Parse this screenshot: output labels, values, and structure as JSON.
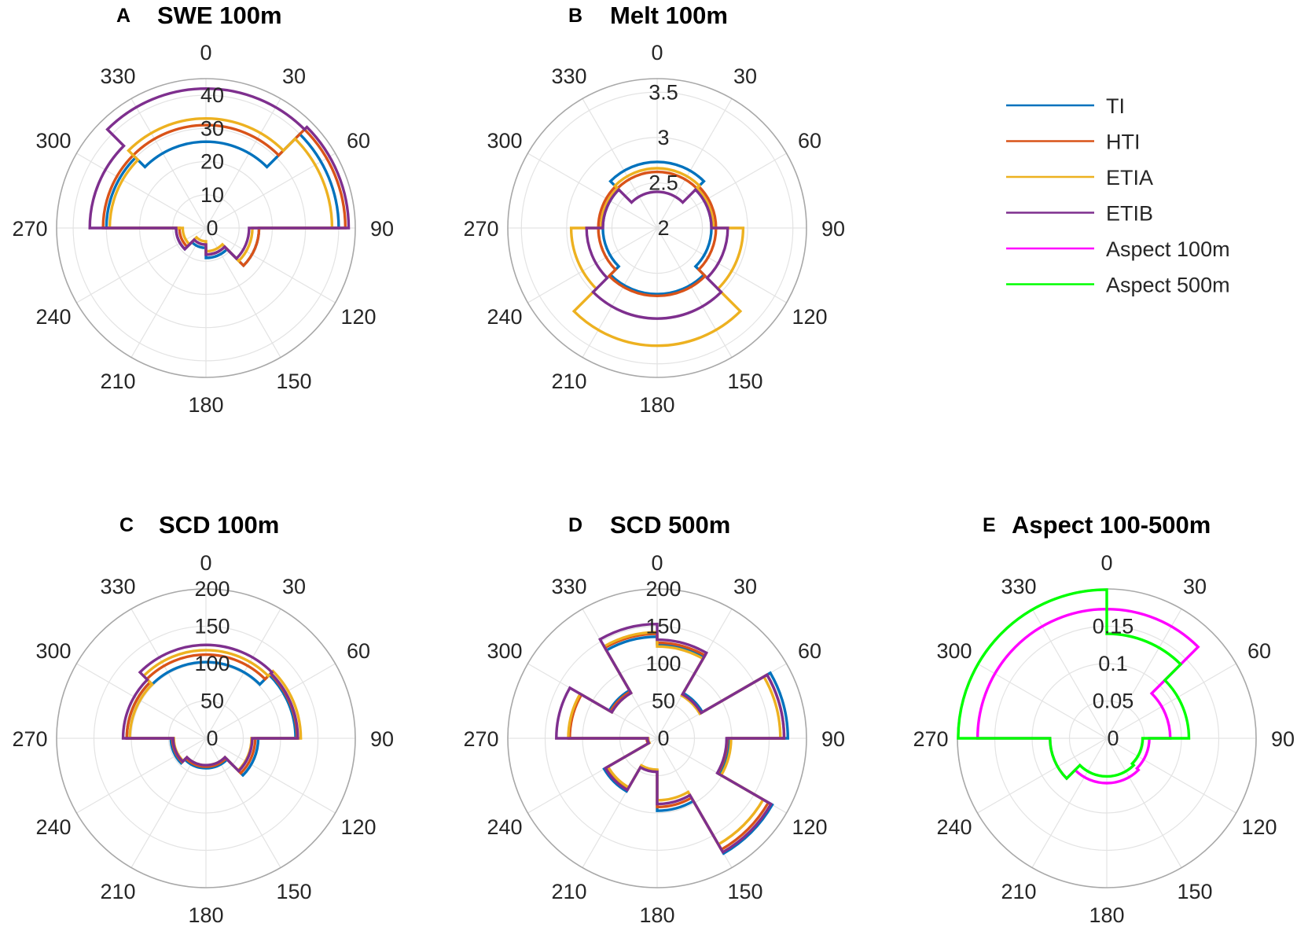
{
  "legend": {
    "placement": "right",
    "entries": [
      {
        "label": "TI",
        "color": "#0072BD"
      },
      {
        "label": "HTI",
        "color": "#D95319"
      },
      {
        "label": "ETIA",
        "color": "#EDB120"
      },
      {
        "label": "ETIB",
        "color": "#7E2F8E"
      },
      {
        "label": "Aspect 100m",
        "color": "#FF00FF"
      },
      {
        "label": "Aspect 500m",
        "color": "#00FF00"
      }
    ]
  },
  "chart_data": [
    {
      "type": "polar-histogram",
      "letter": "A",
      "title": "SWE 100m",
      "theta_ticks": [
        "0",
        "30",
        "60",
        "90",
        "120",
        "150",
        "180",
        "210",
        "240",
        "270",
        "300",
        "330"
      ],
      "r_ticks": [
        "0",
        "10",
        "20",
        "30",
        "40"
      ],
      "r_tick_values": [
        0,
        10,
        20,
        30,
        40
      ],
      "rlim": [
        0,
        45
      ],
      "bin_edges_deg": [
        0,
        45,
        90,
        135,
        180,
        225,
        270,
        315,
        360
      ],
      "series": [
        {
          "name": "TI",
          "color": "#0072BD",
          "values": [
            26,
            40,
            16,
            9,
            6,
            9,
            30,
            26
          ]
        },
        {
          "name": "HTI",
          "color": "#D95319",
          "values": [
            31,
            42,
            16,
            8,
            5,
            8,
            31,
            31
          ]
        },
        {
          "name": "ETIA",
          "color": "#EDB120",
          "values": [
            33,
            38,
            14,
            7,
            4,
            7,
            29,
            33
          ]
        },
        {
          "name": "ETIB",
          "color": "#7E2F8E",
          "values": [
            42,
            43,
            13,
            8,
            5,
            9,
            35,
            42
          ]
        }
      ]
    },
    {
      "type": "polar-histogram",
      "letter": "B",
      "title": "Melt 100m",
      "theta_ticks": [
        "0",
        "30",
        "60",
        "90",
        "120",
        "150",
        "180",
        "210",
        "240",
        "270",
        "300",
        "330"
      ],
      "r_ticks": [
        "2",
        "2.5",
        "3",
        "3.5"
      ],
      "r_tick_values": [
        2,
        2.5,
        3,
        3.5
      ],
      "rlim": [
        2,
        3.65
      ],
      "bin_edges_deg": [
        0,
        45,
        90,
        135,
        180,
        225,
        270,
        315,
        360
      ],
      "series": [
        {
          "name": "TI",
          "color": "#0072BD",
          "values": [
            2.73,
            2.6,
            2.6,
            2.73,
            2.73,
            2.6,
            2.6,
            2.73
          ]
        },
        {
          "name": "HTI",
          "color": "#D95319",
          "values": [
            2.62,
            2.65,
            2.65,
            2.75,
            2.75,
            2.65,
            2.65,
            2.62
          ]
        },
        {
          "name": "ETIA",
          "color": "#EDB120",
          "values": [
            2.66,
            2.62,
            2.95,
            3.3,
            3.3,
            2.95,
            2.62,
            2.66
          ]
        },
        {
          "name": "ETIB",
          "color": "#7E2F8E",
          "values": [
            2.4,
            2.6,
            2.78,
            3.0,
            3.0,
            2.78,
            2.6,
            2.4
          ]
        }
      ]
    },
    {
      "type": "polar-histogram",
      "letter": "C",
      "title": "SCD 100m",
      "theta_ticks": [
        "0",
        "30",
        "60",
        "90",
        "120",
        "150",
        "180",
        "210",
        "240",
        "270",
        "300",
        "330"
      ],
      "r_ticks": [
        "0",
        "50",
        "100",
        "150",
        "200"
      ],
      "r_tick_values": [
        0,
        50,
        100,
        150,
        200
      ],
      "rlim": [
        0,
        200
      ],
      "bin_edges_deg": [
        0,
        45,
        90,
        135,
        180,
        225,
        270,
        315,
        360
      ],
      "series": [
        {
          "name": "TI",
          "color": "#0072BD",
          "values": [
            102,
            120,
            70,
            40,
            40,
            47,
            106,
            102
          ]
        },
        {
          "name": "HTI",
          "color": "#D95319",
          "values": [
            112,
            122,
            66,
            38,
            38,
            45,
            106,
            112
          ]
        },
        {
          "name": "ETIA",
          "color": "#EDB120",
          "values": [
            118,
            127,
            61,
            36,
            36,
            43,
            102,
            118
          ]
        },
        {
          "name": "ETIB",
          "color": "#7E2F8E",
          "values": [
            125,
            123,
            62,
            36,
            36,
            44,
            111,
            125
          ]
        }
      ]
    },
    {
      "type": "polar-histogram",
      "letter": "D",
      "title": "SCD 500m",
      "theta_ticks": [
        "0",
        "30",
        "60",
        "90",
        "120",
        "150",
        "180",
        "210",
        "240",
        "270",
        "300",
        "330"
      ],
      "r_ticks": [
        "0",
        "50",
        "100",
        "150",
        "200"
      ],
      "r_tick_values": [
        0,
        50,
        100,
        150,
        200
      ],
      "rlim": [
        0,
        200
      ],
      "bin_edges_deg": [
        0,
        30,
        60,
        90,
        120,
        150,
        180,
        210,
        240,
        270,
        300,
        330,
        360
      ],
      "series": [
        {
          "name": "TI",
          "color": "#0072BD",
          "values": [
            126,
            70,
            175,
            96,
            178,
            97,
            44,
            82,
            13,
            118,
            74,
            136
          ]
        },
        {
          "name": "HTI",
          "color": "#D95319",
          "values": [
            128,
            68,
            170,
            94,
            172,
            92,
            43,
            78,
            14,
            117,
            72,
            140
          ]
        },
        {
          "name": "ETIA",
          "color": "#EDB120",
          "values": [
            123,
            66,
            165,
            99,
            164,
            83,
            42,
            76,
            12,
            119,
            70,
            142
          ]
        },
        {
          "name": "ETIB",
          "color": "#7E2F8E",
          "values": [
            132,
            68,
            170,
            93,
            176,
            88,
            45,
            80,
            13,
            135,
            70,
            153
          ]
        }
      ]
    },
    {
      "type": "polar-histogram",
      "letter": "E",
      "title": "Aspect 100-500m",
      "theta_ticks": [
        "0",
        "30",
        "60",
        "90",
        "120",
        "150",
        "180",
        "210",
        "240",
        "270",
        "300",
        "330"
      ],
      "r_ticks": [
        "0",
        "0.05",
        "0.1",
        "0.15"
      ],
      "r_tick_values": [
        0,
        0.05,
        0.1,
        0.15
      ],
      "rlim": [
        0,
        0.2
      ],
      "bin_edges_deg": [
        0,
        45,
        90,
        135,
        180,
        225,
        270,
        315,
        360
      ],
      "series": [
        {
          "name": "Aspect 100m",
          "color": "#FF00FF",
          "values": [
            0.173,
            0.085,
            0.057,
            0.06,
            0.06,
            0.076,
            0.173,
            0.173
          ]
        },
        {
          "name": "Aspect 500m",
          "color": "#00FF00",
          "values": [
            0.14,
            0.11,
            0.048,
            0.051,
            0.051,
            0.076,
            0.199,
            0.199
          ]
        }
      ]
    }
  ]
}
